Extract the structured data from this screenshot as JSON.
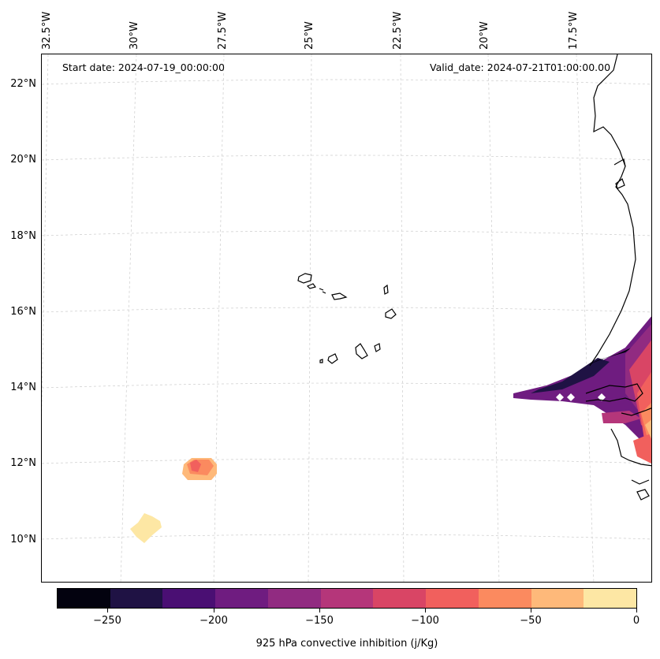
{
  "map": {
    "start_date": "Start date: 2024-07-19_00:00:00",
    "valid_date": "Valid_date: 2024-07-21T01:00:00.00",
    "longitude_labels": [
      "32.5°W",
      "30°W",
      "27.5°W",
      "25°W",
      "22.5°W",
      "20°W",
      "17.5°W"
    ],
    "latitude_labels": [
      "22°N",
      "20°N",
      "18°N",
      "16°N",
      "14°N",
      "12°N",
      "10°N"
    ],
    "features": [
      "Cape Verde islands",
      "West African coastline",
      "CIN contour patches"
    ]
  },
  "colorbar": {
    "label": "925 hPa convective inhibition (j/Kg)",
    "ticks": [
      "−250",
      "−200",
      "−150",
      "−100",
      "−50",
      "0"
    ],
    "range": [
      -275,
      0
    ],
    "levels": [
      -275,
      -250,
      -225,
      -200,
      -175,
      -150,
      -125,
      -100,
      -75,
      -50,
      -25,
      0
    ],
    "colors": [
      "#03020f",
      "#1f1244",
      "#4a0f73",
      "#6f1c80",
      "#912b81",
      "#b5367a",
      "#d94565",
      "#f1605d",
      "#fb8a5f",
      "#feb97a",
      "#fde7a4"
    ]
  }
}
